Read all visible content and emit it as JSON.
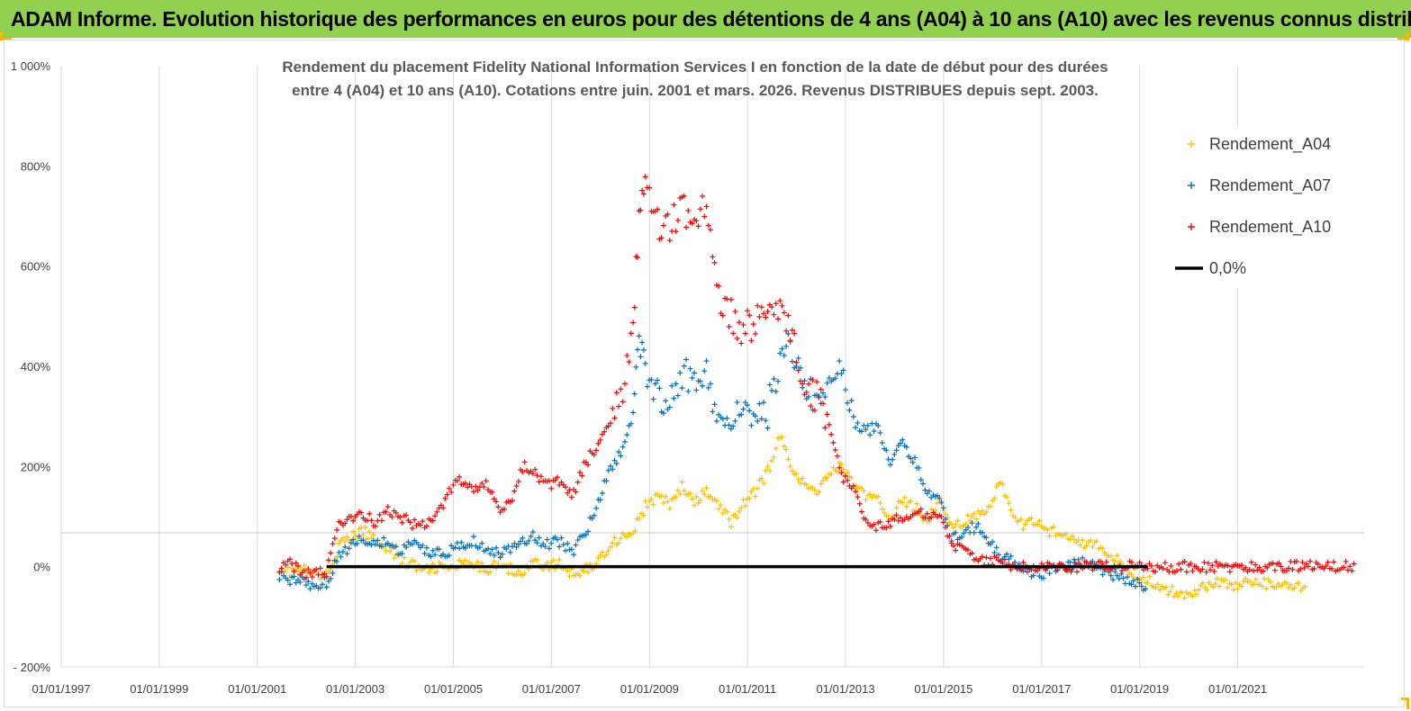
{
  "header": {
    "banner": "ADAM Informe. Evolution historique des performances en euros pour des détentions de 4 ans (A04) à 10 ans (A10) avec les revenus connus distribués"
  },
  "colors": {
    "banner_bg": "#92d050",
    "A04": "#ffc000",
    "A07": "#0070c0",
    "A10": "#ff0000",
    "zero": "#000000"
  },
  "chart_data": {
    "type": "scatter",
    "title": "Rendement du placement Fidelity National Information Services I en fonction de la date de début pour des durées entre 4 (A04) et 10 ans (A10). Cotations entre juin. 2001 et mars. 2026. Revenus DISTRIBUES depuis sept. 2003.",
    "title_lines": [
      "Rendement du placement Fidelity National Information Services I en fonction de la date de début pour des durées",
      "entre 4 (A04) et 10 ans (A10). Cotations entre juin. 2001 et mars. 2026. Revenus DISTRIBUES depuis sept. 2003."
    ],
    "x_axis": {
      "type": "date",
      "range": [
        "1997-01-01",
        "2023-08-01"
      ],
      "tick_labels": [
        "01/01/1997",
        "01/01/1999",
        "01/01/2001",
        "01/01/2003",
        "01/01/2005",
        "01/01/2007",
        "01/01/2009",
        "01/01/2011",
        "01/01/2013",
        "01/01/2015",
        "01/01/2017",
        "01/01/2019",
        "01/01/2021"
      ]
    },
    "y_axis": {
      "unit": "%",
      "range": [
        -200,
        1000
      ],
      "tick_values": [
        -200,
        0,
        200,
        400,
        600,
        800,
        1000
      ],
      "tick_labels": [
        "- 200%",
        "0%",
        "200%",
        "400%",
        "600%",
        "800%",
        "1 000%"
      ]
    },
    "grid": "vertical",
    "legend": {
      "placement": "top-right"
    },
    "series": [
      {
        "name": "Rendement_A04",
        "color": "#ffc000",
        "marker": "+",
        "points": [
          [
            "2001-06-15",
            0
          ],
          [
            "2001-09-01",
            -10
          ],
          [
            "2001-12-01",
            -5
          ],
          [
            "2002-03-01",
            -15
          ],
          [
            "2002-06-01",
            -20
          ],
          [
            "2002-09-01",
            40
          ],
          [
            "2002-12-01",
            60
          ],
          [
            "2003-03-01",
            70
          ],
          [
            "2003-06-01",
            55
          ],
          [
            "2003-09-01",
            40
          ],
          [
            "2003-12-01",
            10
          ],
          [
            "2004-03-01",
            5
          ],
          [
            "2004-06-01",
            -10
          ],
          [
            "2004-09-01",
            0
          ],
          [
            "2004-12-01",
            -5
          ],
          [
            "2005-03-01",
            5
          ],
          [
            "2005-06-01",
            0
          ],
          [
            "2005-09-01",
            -5
          ],
          [
            "2005-12-01",
            10
          ],
          [
            "2006-03-01",
            -5
          ],
          [
            "2006-06-01",
            -10
          ],
          [
            "2006-09-01",
            10
          ],
          [
            "2006-12-01",
            0
          ],
          [
            "2007-03-01",
            5
          ],
          [
            "2007-06-01",
            -15
          ],
          [
            "2007-09-01",
            -5
          ],
          [
            "2007-12-01",
            5
          ],
          [
            "2008-03-01",
            40
          ],
          [
            "2008-06-01",
            60
          ],
          [
            "2008-09-01",
            70
          ],
          [
            "2008-12-01",
            120
          ],
          [
            "2009-03-01",
            140
          ],
          [
            "2009-06-01",
            125
          ],
          [
            "2009-09-01",
            160
          ],
          [
            "2009-12-01",
            125
          ],
          [
            "2010-03-01",
            150
          ],
          [
            "2010-06-01",
            120
          ],
          [
            "2010-09-01",
            90
          ],
          [
            "2010-12-01",
            125
          ],
          [
            "2011-03-01",
            150
          ],
          [
            "2011-06-01",
            190
          ],
          [
            "2011-09-01",
            260
          ],
          [
            "2011-12-01",
            200
          ],
          [
            "2012-03-01",
            160
          ],
          [
            "2012-06-01",
            150
          ],
          [
            "2012-09-01",
            190
          ],
          [
            "2012-12-01",
            200
          ],
          [
            "2013-03-01",
            170
          ],
          [
            "2013-06-01",
            140
          ],
          [
            "2013-09-01",
            130
          ],
          [
            "2013-12-01",
            100
          ],
          [
            "2014-03-01",
            130
          ],
          [
            "2014-06-01",
            120
          ],
          [
            "2014-09-01",
            95
          ],
          [
            "2014-12-01",
            130
          ],
          [
            "2015-03-01",
            85
          ],
          [
            "2015-06-01",
            90
          ],
          [
            "2015-09-01",
            100
          ],
          [
            "2015-12-01",
            110
          ],
          [
            "2016-03-01",
            175
          ],
          [
            "2016-06-01",
            95
          ],
          [
            "2016-09-01",
            80
          ],
          [
            "2016-12-01",
            95
          ],
          [
            "2017-03-01",
            70
          ],
          [
            "2017-06-01",
            70
          ],
          [
            "2017-09-01",
            60
          ],
          [
            "2017-12-01",
            45
          ],
          [
            "2018-03-01",
            40
          ],
          [
            "2018-06-01",
            20
          ],
          [
            "2018-09-01",
            5
          ],
          [
            "2018-12-01",
            -15
          ],
          [
            "2019-03-01",
            -25
          ],
          [
            "2019-06-01",
            -45
          ],
          [
            "2019-09-01",
            -50
          ],
          [
            "2019-12-01",
            -55
          ],
          [
            "2020-03-01",
            -45
          ],
          [
            "2020-06-01",
            -35
          ],
          [
            "2020-09-01",
            -30
          ],
          [
            "2020-12-01",
            -40
          ],
          [
            "2021-03-01",
            -30
          ],
          [
            "2021-06-01",
            -35
          ],
          [
            "2021-09-01",
            -35
          ],
          [
            "2021-12-01",
            -40
          ],
          [
            "2022-03-01",
            -40
          ],
          [
            "2022-06-01",
            -45
          ]
        ]
      },
      {
        "name": "Rendement_A07",
        "color": "#0070c0",
        "marker": "+",
        "points": [
          [
            "2001-06-15",
            -15
          ],
          [
            "2001-09-01",
            -25
          ],
          [
            "2001-12-01",
            -30
          ],
          [
            "2002-03-01",
            -35
          ],
          [
            "2002-06-01",
            -30
          ],
          [
            "2002-09-01",
            20
          ],
          [
            "2002-12-01",
            40
          ],
          [
            "2003-03-01",
            60
          ],
          [
            "2003-06-01",
            40
          ],
          [
            "2003-09-01",
            50
          ],
          [
            "2003-12-01",
            30
          ],
          [
            "2004-03-01",
            45
          ],
          [
            "2004-06-01",
            35
          ],
          [
            "2004-09-01",
            25
          ],
          [
            "2004-12-01",
            30
          ],
          [
            "2005-03-01",
            40
          ],
          [
            "2005-06-01",
            50
          ],
          [
            "2005-09-01",
            35
          ],
          [
            "2005-12-01",
            25
          ],
          [
            "2006-03-01",
            35
          ],
          [
            "2006-06-01",
            55
          ],
          [
            "2006-09-01",
            60
          ],
          [
            "2006-12-01",
            45
          ],
          [
            "2007-03-01",
            50
          ],
          [
            "2007-06-01",
            30
          ],
          [
            "2007-09-01",
            60
          ],
          [
            "2007-12-01",
            120
          ],
          [
            "2008-03-01",
            190
          ],
          [
            "2008-06-01",
            230
          ],
          [
            "2008-09-01",
            300
          ],
          [
            "2008-10-15",
            450
          ],
          [
            "2008-12-01",
            400
          ],
          [
            "2009-03-01",
            350
          ],
          [
            "2009-06-01",
            330
          ],
          [
            "2009-09-01",
            390
          ],
          [
            "2009-12-01",
            360
          ],
          [
            "2010-03-01",
            380
          ],
          [
            "2010-06-01",
            300
          ],
          [
            "2010-09-01",
            280
          ],
          [
            "2010-12-01",
            340
          ],
          [
            "2011-03-01",
            300
          ],
          [
            "2011-06-01",
            310
          ],
          [
            "2011-09-01",
            420
          ],
          [
            "2011-12-01",
            440
          ],
          [
            "2012-03-01",
            360
          ],
          [
            "2012-06-01",
            330
          ],
          [
            "2012-09-01",
            380
          ],
          [
            "2012-12-01",
            420
          ],
          [
            "2013-03-01",
            290
          ],
          [
            "2013-06-01",
            270
          ],
          [
            "2013-09-01",
            280
          ],
          [
            "2013-12-01",
            200
          ],
          [
            "2014-03-01",
            250
          ],
          [
            "2014-06-01",
            210
          ],
          [
            "2014-09-01",
            150
          ],
          [
            "2014-12-01",
            130
          ],
          [
            "2015-03-01",
            60
          ],
          [
            "2015-06-01",
            70
          ],
          [
            "2015-09-01",
            80
          ],
          [
            "2015-12-01",
            50
          ],
          [
            "2016-03-01",
            20
          ],
          [
            "2016-06-01",
            10
          ],
          [
            "2016-09-01",
            -10
          ],
          [
            "2016-12-01",
            -15
          ],
          [
            "2017-03-01",
            -10
          ],
          [
            "2017-06-01",
            0
          ],
          [
            "2017-09-01",
            5
          ],
          [
            "2017-12-01",
            10
          ],
          [
            "2018-03-01",
            -5
          ],
          [
            "2018-06-01",
            -15
          ],
          [
            "2018-09-01",
            -25
          ],
          [
            "2018-12-01",
            -30
          ],
          [
            "2019-03-01",
            -40
          ]
        ]
      },
      {
        "name": "Rendement_A10",
        "color": "#ff0000",
        "marker": "+",
        "points": [
          [
            "2001-06-15",
            0
          ],
          [
            "2001-09-01",
            5
          ],
          [
            "2001-12-01",
            -10
          ],
          [
            "2002-03-01",
            -15
          ],
          [
            "2002-06-01",
            -10
          ],
          [
            "2002-09-01",
            80
          ],
          [
            "2002-12-01",
            100
          ],
          [
            "2003-03-01",
            105
          ],
          [
            "2003-06-01",
            90
          ],
          [
            "2003-09-01",
            110
          ],
          [
            "2003-12-01",
            100
          ],
          [
            "2004-03-01",
            85
          ],
          [
            "2004-06-01",
            80
          ],
          [
            "2004-09-01",
            100
          ],
          [
            "2004-12-01",
            150
          ],
          [
            "2005-03-01",
            175
          ],
          [
            "2005-06-01",
            150
          ],
          [
            "2005-09-01",
            170
          ],
          [
            "2005-12-01",
            110
          ],
          [
            "2006-03-01",
            130
          ],
          [
            "2006-06-01",
            200
          ],
          [
            "2006-09-01",
            190
          ],
          [
            "2006-12-01",
            160
          ],
          [
            "2007-03-01",
            170
          ],
          [
            "2007-06-01",
            140
          ],
          [
            "2007-09-01",
            200
          ],
          [
            "2007-12-01",
            240
          ],
          [
            "2008-03-01",
            290
          ],
          [
            "2008-06-01",
            330
          ],
          [
            "2008-09-01",
            500
          ],
          [
            "2008-10-15",
            700
          ],
          [
            "2008-12-01",
            780
          ],
          [
            "2009-03-01",
            690
          ],
          [
            "2009-06-01",
            680
          ],
          [
            "2009-09-01",
            720
          ],
          [
            "2009-12-01",
            690
          ],
          [
            "2010-03-01",
            730
          ],
          [
            "2010-06-01",
            530
          ],
          [
            "2010-09-01",
            500
          ],
          [
            "2010-12-01",
            470
          ],
          [
            "2011-03-01",
            490
          ],
          [
            "2011-06-01",
            500
          ],
          [
            "2011-09-01",
            520
          ],
          [
            "2011-12-01",
            460
          ],
          [
            "2012-03-01",
            320
          ],
          [
            "2012-06-01",
            350
          ],
          [
            "2012-09-01",
            290
          ],
          [
            "2012-12-01",
            180
          ],
          [
            "2013-03-01",
            160
          ],
          [
            "2013-06-01",
            95
          ],
          [
            "2013-09-01",
            80
          ],
          [
            "2013-12-01",
            85
          ],
          [
            "2014-03-01",
            100
          ],
          [
            "2014-06-01",
            110
          ],
          [
            "2014-09-01",
            100
          ],
          [
            "2014-12-01",
            110
          ],
          [
            "2015-03-01",
            40
          ],
          [
            "2015-06-01",
            30
          ],
          [
            "2015-09-01",
            20
          ],
          [
            "2015-12-01",
            10
          ],
          [
            "2016-03-01",
            20
          ],
          [
            "2016-06-01",
            0
          ],
          [
            "2016-09-01",
            0
          ],
          [
            "2017-01-01",
            0
          ],
          [
            "2018-01-01",
            0
          ],
          [
            "2019-01-01",
            0
          ],
          [
            "2020-01-01",
            0
          ],
          [
            "2021-01-01",
            0
          ],
          [
            "2022-01-01",
            0
          ],
          [
            "2023-01-01",
            0
          ],
          [
            "2023-06-01",
            0
          ]
        ]
      },
      {
        "name": "0,0%",
        "color": "#000000",
        "marker": "line",
        "points": [
          [
            "2002-06-01",
            0
          ],
          [
            "2019-03-01",
            0
          ]
        ]
      }
    ]
  }
}
